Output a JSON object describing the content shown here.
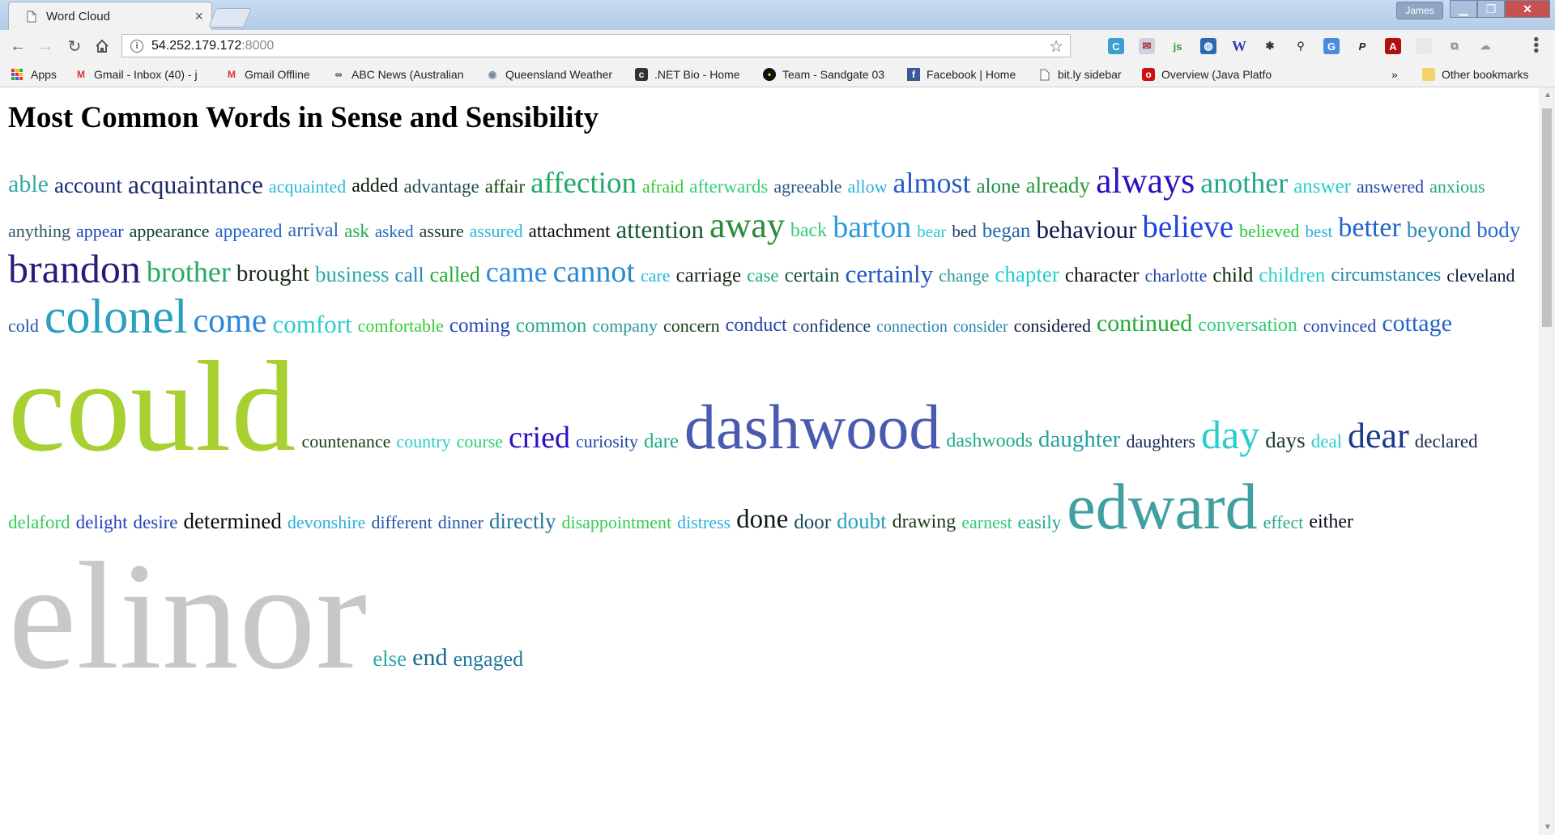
{
  "browser": {
    "tab_title": "Word Cloud",
    "tab_close": "×",
    "user_name": "James",
    "address_host": "54.252.179.172",
    "address_port": ":8000",
    "bookmarks": [
      {
        "label": "Apps",
        "icon": "apps-grid-icon"
      },
      {
        "label": "Gmail - Inbox (40) - j",
        "icon": "gmail-icon"
      },
      {
        "label": "Gmail Offline",
        "icon": "gmail-icon"
      },
      {
        "label": "ABC News (Australian",
        "icon": "abc-icon"
      },
      {
        "label": "Queensland Weather",
        "icon": "weather-icon"
      },
      {
        "label": ".NET Bio - Home",
        "icon": "netbio-icon"
      },
      {
        "label": "Team - Sandgate 03",
        "icon": "team-icon"
      },
      {
        "label": "Facebook | Home",
        "icon": "facebook-icon"
      },
      {
        "label": "bit.ly sidebar",
        "icon": "page-icon"
      },
      {
        "label": "Overview (Java Platfo",
        "icon": "oracle-icon"
      }
    ],
    "bookmarks_overflow": "»",
    "other_bookmarks": "Other bookmarks"
  },
  "page": {
    "title": "Most Common Words in Sense and Sensibility"
  },
  "word_cloud": [
    {
      "word": "able",
      "size": 30,
      "color": "#3aa6a6"
    },
    {
      "word": "account",
      "size": 27,
      "color": "#1a2a7a"
    },
    {
      "word": "acquaintance",
      "size": 32,
      "color": "#1c2a66"
    },
    {
      "word": "acquainted",
      "size": 22,
      "color": "#2ab8d8"
    },
    {
      "word": "added",
      "size": 24,
      "color": "#0a1a0a"
    },
    {
      "word": "advantage",
      "size": 23,
      "color": "#1b4a4a"
    },
    {
      "word": "affair",
      "size": 23,
      "color": "#114411"
    },
    {
      "word": "affection",
      "size": 37,
      "color": "#22aa66"
    },
    {
      "word": "afraid",
      "size": 22,
      "color": "#33cc33"
    },
    {
      "word": "afterwards",
      "size": 23,
      "color": "#33cc77"
    },
    {
      "word": "agreeable",
      "size": 22,
      "color": "#2a5a8a"
    },
    {
      "word": "allow",
      "size": 22,
      "color": "#2ab0e0"
    },
    {
      "word": "almost",
      "size": 36,
      "color": "#2a5ac8"
    },
    {
      "word": "alone",
      "size": 25,
      "color": "#1f8a4a"
    },
    {
      "word": "already",
      "size": 27,
      "color": "#2a9a3a"
    },
    {
      "word": "always",
      "size": 44,
      "color": "#2a10c0"
    },
    {
      "word": "another",
      "size": 36,
      "color": "#22aa88"
    },
    {
      "word": "answer",
      "size": 25,
      "color": "#2acccc"
    },
    {
      "word": "answered",
      "size": 22,
      "color": "#2244aa"
    },
    {
      "word": "anxious",
      "size": 22,
      "color": "#22aa88"
    },
    {
      "word": "anything",
      "size": 22,
      "color": "#335566"
    },
    {
      "word": "appear",
      "size": 22,
      "color": "#2244bb"
    },
    {
      "word": "appearance",
      "size": 22,
      "color": "#0a3a2a"
    },
    {
      "word": "appeared",
      "size": 23,
      "color": "#2266cc"
    },
    {
      "word": "arrival",
      "size": 24,
      "color": "#2a66bb"
    },
    {
      "word": "ask",
      "size": 23,
      "color": "#22aa55"
    },
    {
      "word": "asked",
      "size": 21,
      "color": "#2266bb"
    },
    {
      "word": "assure",
      "size": 22,
      "color": "#1a3a3a"
    },
    {
      "word": "assured",
      "size": 22,
      "color": "#2ab8d8"
    },
    {
      "word": "attachment",
      "size": 23,
      "color": "#0a0a0a"
    },
    {
      "word": "attention",
      "size": 31,
      "color": "#1a5a3a"
    },
    {
      "word": "away",
      "size": 44,
      "color": "#2a8a3a"
    },
    {
      "word": "back",
      "size": 24,
      "color": "#33cc77"
    },
    {
      "word": "barton",
      "size": 38,
      "color": "#2a9ae0"
    },
    {
      "word": "bear",
      "size": 21,
      "color": "#2acccc"
    },
    {
      "word": "bed",
      "size": 21,
      "color": "#1a3a6a"
    },
    {
      "word": "began",
      "size": 25,
      "color": "#2266aa"
    },
    {
      "word": "behaviour",
      "size": 31,
      "color": "#0a1a4a"
    },
    {
      "word": "believe",
      "size": 39,
      "color": "#2244dd"
    },
    {
      "word": "believed",
      "size": 22,
      "color": "#22cc33"
    },
    {
      "word": "best",
      "size": 21,
      "color": "#2ab0e0"
    },
    {
      "word": "better",
      "size": 34,
      "color": "#2266cc"
    },
    {
      "word": "beyond",
      "size": 27,
      "color": "#2288bb"
    },
    {
      "word": "body",
      "size": 27,
      "color": "#2266cc"
    },
    {
      "word": "brandon",
      "size": 50,
      "color": "#2a1a7a"
    },
    {
      "word": "brother",
      "size": 36,
      "color": "#22aa66"
    },
    {
      "word": "brought",
      "size": 29,
      "color": "#1a2a1a"
    },
    {
      "word": "business",
      "size": 27,
      "color": "#2aaaaa"
    },
    {
      "word": "call",
      "size": 25,
      "color": "#2288bb"
    },
    {
      "word": "called",
      "size": 26,
      "color": "#22aa33"
    },
    {
      "word": "came",
      "size": 36,
      "color": "#2a8ae0"
    },
    {
      "word": "cannot",
      "size": 38,
      "color": "#2a88cc"
    },
    {
      "word": "care",
      "size": 22,
      "color": "#2ab8d8"
    },
    {
      "word": "carriage",
      "size": 25,
      "color": "#1a2a1a"
    },
    {
      "word": "case",
      "size": 23,
      "color": "#22aa88"
    },
    {
      "word": "certain",
      "size": 25,
      "color": "#1a5a3a"
    },
    {
      "word": "certainly",
      "size": 31,
      "color": "#2255bb"
    },
    {
      "word": "change",
      "size": 22,
      "color": "#2a9a9a"
    },
    {
      "word": "chapter",
      "size": 27,
      "color": "#2acccc"
    },
    {
      "word": "character",
      "size": 25,
      "color": "#1a1a1a"
    },
    {
      "word": "charlotte",
      "size": 22,
      "color": "#2244aa"
    },
    {
      "word": "child",
      "size": 25,
      "color": "#0a2a0a"
    },
    {
      "word": "children",
      "size": 25,
      "color": "#2acccc"
    },
    {
      "word": "circumstances",
      "size": 24,
      "color": "#2288aa"
    },
    {
      "word": "cleveland",
      "size": 22,
      "color": "#0a1a3a"
    },
    {
      "word": "cold",
      "size": 22,
      "color": "#2255aa"
    },
    {
      "word": "colonel",
      "size": 60,
      "color": "#2aa0c0"
    },
    {
      "word": "come",
      "size": 42,
      "color": "#2a88dd"
    },
    {
      "word": "comfort",
      "size": 31,
      "color": "#2acccc"
    },
    {
      "word": "comfortable",
      "size": 22,
      "color": "#33cc33"
    },
    {
      "word": "coming",
      "size": 25,
      "color": "#2244bb"
    },
    {
      "word": "common",
      "size": 25,
      "color": "#22aa88"
    },
    {
      "word": "company",
      "size": 22,
      "color": "#2a9a9a"
    },
    {
      "word": "concern",
      "size": 22,
      "color": "#1a3a1a"
    },
    {
      "word": "conduct",
      "size": 24,
      "color": "#2244aa"
    },
    {
      "word": "confidence",
      "size": 22,
      "color": "#1a3a6a"
    },
    {
      "word": "connection",
      "size": 20,
      "color": "#2288aa"
    },
    {
      "word": "consider",
      "size": 20,
      "color": "#2288aa"
    },
    {
      "word": "considered",
      "size": 22,
      "color": "#0a1a3a"
    },
    {
      "word": "continued",
      "size": 30,
      "color": "#22aa33"
    },
    {
      "word": "conversation",
      "size": 24,
      "color": "#33cc77"
    },
    {
      "word": "convinced",
      "size": 22,
      "color": "#2244aa"
    },
    {
      "word": "cottage",
      "size": 30,
      "color": "#2266cc"
    },
    {
      "word": "could",
      "size": 160,
      "color": "#a8d030"
    },
    {
      "word": "countenance",
      "size": 22,
      "color": "#1a3a1a"
    },
    {
      "word": "country",
      "size": 22,
      "color": "#2acccc"
    },
    {
      "word": "course",
      "size": 22,
      "color": "#33cc77"
    },
    {
      "word": "cried",
      "size": 38,
      "color": "#2a10c0"
    },
    {
      "word": "curiosity",
      "size": 22,
      "color": "#2244aa"
    },
    {
      "word": "dare",
      "size": 25,
      "color": "#22aa88"
    },
    {
      "word": "dashwood",
      "size": 78,
      "color": "#4a5ab0"
    },
    {
      "word": "dashwoods",
      "size": 24,
      "color": "#22aa88"
    },
    {
      "word": "daughter",
      "size": 29,
      "color": "#2aa0a0"
    },
    {
      "word": "daughters",
      "size": 22,
      "color": "#1a2a5a"
    },
    {
      "word": "day",
      "size": 50,
      "color": "#2acccc"
    },
    {
      "word": "days",
      "size": 27,
      "color": "#1a3a2a"
    },
    {
      "word": "deal",
      "size": 23,
      "color": "#2acccc"
    },
    {
      "word": "dear",
      "size": 44,
      "color": "#1a3a8a"
    },
    {
      "word": "declared",
      "size": 23,
      "color": "#1a2a4a"
    },
    {
      "word": "delaford",
      "size": 23,
      "color": "#33cc55"
    },
    {
      "word": "delight",
      "size": 23,
      "color": "#2244bb"
    },
    {
      "word": "desire",
      "size": 23,
      "color": "#2244bb"
    },
    {
      "word": "determined",
      "size": 27,
      "color": "#0a0a0a"
    },
    {
      "word": "devonshire",
      "size": 22,
      "color": "#2ab0e0"
    },
    {
      "word": "different",
      "size": 22,
      "color": "#2255aa"
    },
    {
      "word": "dinner",
      "size": 22,
      "color": "#2255aa"
    },
    {
      "word": "directly",
      "size": 27,
      "color": "#22779a"
    },
    {
      "word": "disappointment",
      "size": 22,
      "color": "#33cc55"
    },
    {
      "word": "distress",
      "size": 22,
      "color": "#2ab0e0"
    },
    {
      "word": "done",
      "size": 33,
      "color": "#0a1a1a"
    },
    {
      "word": "door",
      "size": 25,
      "color": "#1a4a5a"
    },
    {
      "word": "doubt",
      "size": 27,
      "color": "#2aa0c0"
    },
    {
      "word": "drawing",
      "size": 24,
      "color": "#1a3a1a"
    },
    {
      "word": "earnest",
      "size": 22,
      "color": "#33cc77"
    },
    {
      "word": "easily",
      "size": 23,
      "color": "#22aa88"
    },
    {
      "word": "edward",
      "size": 80,
      "color": "#40a0a0"
    },
    {
      "word": "effect",
      "size": 22,
      "color": "#22aa88"
    },
    {
      "word": "either",
      "size": 24,
      "color": "#0a0a1a"
    },
    {
      "word": "elinor",
      "size": 190,
      "color": "#c8c8c8"
    },
    {
      "word": "else",
      "size": 27,
      "color": "#2aaaaa"
    },
    {
      "word": "end",
      "size": 30,
      "color": "#1a6a8a"
    },
    {
      "word": "engaged",
      "size": 26,
      "color": "#22779a"
    }
  ]
}
